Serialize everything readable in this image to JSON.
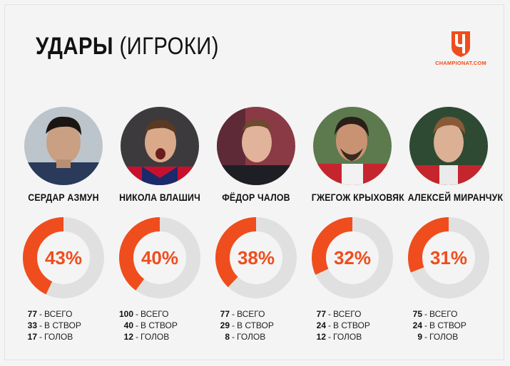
{
  "header": {
    "title_bold": "УДАРЫ",
    "title_light": "(ИГРОКИ)",
    "logo_text": "CHAMPIONAT.COM"
  },
  "colors": {
    "accent": "#ef4d1d",
    "ring_track": "#e0e0e0",
    "background": "#f4f4f4"
  },
  "players": [
    {
      "name": "СЕРДАР АЗМУН",
      "percent_label": "43%",
      "percent": 43,
      "stats": [
        {
          "value": "77",
          "label": "ВСЕГО"
        },
        {
          "value": "33",
          "label": "В СТВОР"
        },
        {
          "value": "17",
          "label": "ГОЛОВ"
        }
      ]
    },
    {
      "name": "НИКОЛА ВЛАШИЧ",
      "percent_label": "40%",
      "percent": 40,
      "stats": [
        {
          "value": "100",
          "label": "ВСЕГО"
        },
        {
          "value": "40",
          "label": "В СТВОР"
        },
        {
          "value": "12",
          "label": "ГОЛОВ"
        }
      ]
    },
    {
      "name": "ФЁДОР ЧАЛОВ",
      "percent_label": "38%",
      "percent": 38,
      "stats": [
        {
          "value": "77",
          "label": "ВСЕГО"
        },
        {
          "value": "29",
          "label": "В СТВОР"
        },
        {
          "value": "8",
          "label": "ГОЛОВ"
        }
      ]
    },
    {
      "name": "ГЖЕГОЖ КРЫХОВЯК",
      "percent_label": "32%",
      "percent": 32,
      "stats": [
        {
          "value": "77",
          "label": "ВСЕГО"
        },
        {
          "value": "24",
          "label": "В СТВОР"
        },
        {
          "value": "12",
          "label": "ГОЛОВ"
        }
      ]
    },
    {
      "name": "АЛЕКСЕЙ МИРАНЧУК",
      "percent_label": "31%",
      "percent": 31,
      "stats": [
        {
          "value": "75",
          "label": "ВСЕГО"
        },
        {
          "value": "24",
          "label": "В СТВОР"
        },
        {
          "value": "9",
          "label": "ГОЛОВ"
        }
      ]
    }
  ]
}
